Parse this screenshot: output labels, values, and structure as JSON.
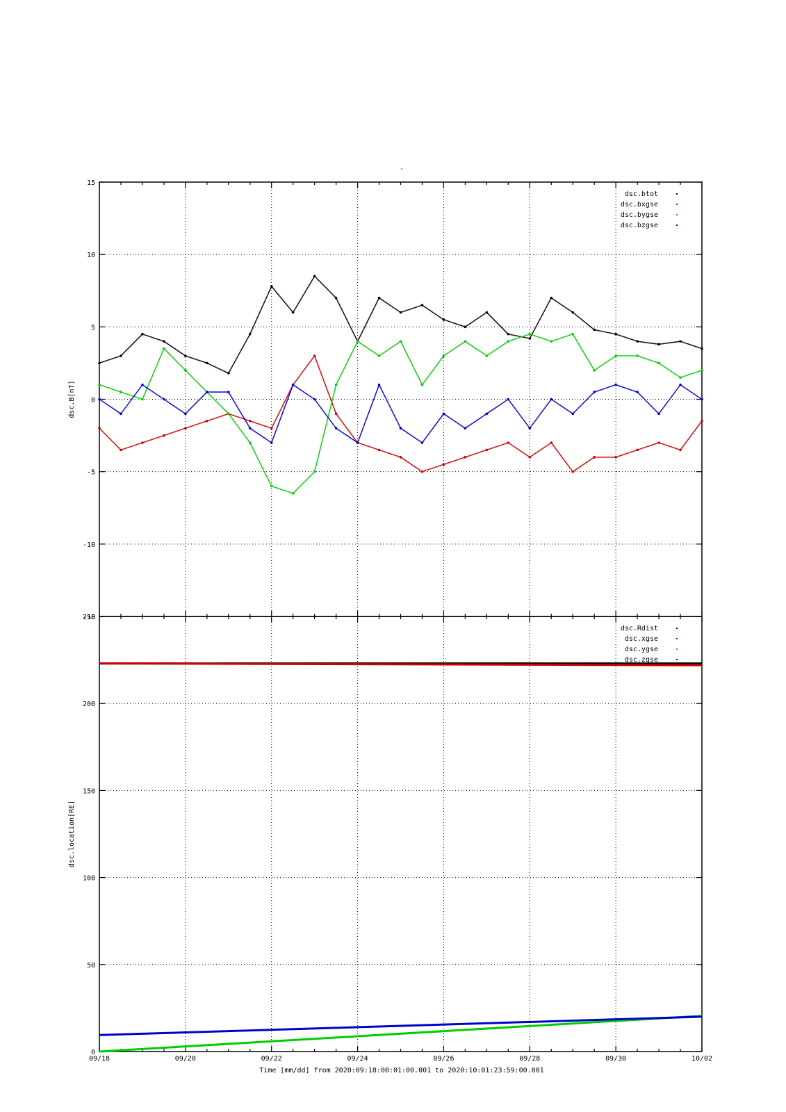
{
  "title": "-",
  "xlabel": "Time [mm/dd]  from 2020:09:18:00:01:00.001  to  2020:10:01:23:59:00.001",
  "x_ticks": [
    "09/18",
    "09/20",
    "09/22",
    "09/24",
    "09/26",
    "09/28",
    "09/30",
    "10/02"
  ],
  "chart_data": [
    {
      "type": "scatter",
      "ylabel": "dsc.B[nT]",
      "ylim": [
        -15,
        15
      ],
      "y_ticks": [
        15,
        10,
        5,
        0,
        -5,
        -10,
        -15
      ],
      "xlim": [
        "09/18",
        "10/02"
      ],
      "grid": true,
      "legend_position": "top-right",
      "x_days": [
        0,
        0.5,
        1,
        1.5,
        2,
        2.5,
        3,
        3.5,
        4,
        4.5,
        5,
        5.5,
        6,
        6.5,
        7,
        7.5,
        8,
        8.5,
        9,
        9.5,
        10,
        10.5,
        11,
        11.5,
        12,
        12.5,
        13,
        13.5,
        14
      ],
      "series": [
        {
          "name": "dsc.btot",
          "color": "#000000",
          "values": [
            2.5,
            3.0,
            4.5,
            4.0,
            3.0,
            2.5,
            1.8,
            4.5,
            7.8,
            6.0,
            8.5,
            7.0,
            4.0,
            7.0,
            6.0,
            6.5,
            5.5,
            5.0,
            6.0,
            4.5,
            4.2,
            7.0,
            6.0,
            4.8,
            4.5,
            4.0,
            3.8,
            4.0,
            3.5
          ]
        },
        {
          "name": "dsc.bxgse",
          "color": "#cc0000",
          "values": [
            -2.0,
            -3.5,
            -3.0,
            -2.5,
            -2.0,
            -1.5,
            -1.0,
            -1.5,
            -2.0,
            1.0,
            3.0,
            -1.0,
            -3.0,
            -3.5,
            -4.0,
            -5.0,
            -4.5,
            -4.0,
            -3.5,
            -3.0,
            -4.0,
            -3.0,
            -5.0,
            -4.0,
            -4.0,
            -3.5,
            -3.0,
            -3.5,
            -1.5
          ]
        },
        {
          "name": "dsc.bygse",
          "color": "#00cc00",
          "values": [
            1.0,
            0.5,
            0.0,
            3.5,
            2.0,
            0.5,
            -1.0,
            -3.0,
            -6.0,
            -6.5,
            -5.0,
            1.0,
            4.0,
            3.0,
            4.0,
            1.0,
            3.0,
            4.0,
            3.0,
            4.0,
            4.5,
            4.0,
            4.5,
            2.0,
            3.0,
            3.0,
            2.5,
            1.5,
            2.0
          ]
        },
        {
          "name": "dsc.bzgse",
          "color": "#0000cc",
          "values": [
            0.0,
            -1.0,
            1.0,
            0.0,
            -1.0,
            0.5,
            0.5,
            -2.0,
            -3.0,
            1.0,
            0.0,
            -2.0,
            -3.0,
            1.0,
            -2.0,
            -3.0,
            -1.0,
            -2.0,
            -1.0,
            0.0,
            -2.0,
            0.0,
            -1.0,
            0.5,
            1.0,
            0.5,
            -1.0,
            1.0,
            0.0
          ]
        }
      ]
    },
    {
      "type": "scatter",
      "ylabel": "dsc.location[RE]",
      "ylim": [
        0,
        250
      ],
      "y_ticks": [
        250,
        200,
        150,
        100,
        50,
        0
      ],
      "xlim": [
        "09/18",
        "10/02"
      ],
      "grid": true,
      "legend_position": "top-right",
      "x_days": [
        0,
        14
      ],
      "series": [
        {
          "name": "dsc.Rdist",
          "color": "#000000",
          "values": [
            223,
            223
          ]
        },
        {
          "name": "dsc.xgse",
          "color": "#cc0000",
          "values": [
            223,
            222
          ]
        },
        {
          "name": "dsc.ygse",
          "color": "#00cc00",
          "values": [
            0,
            20.5
          ]
        },
        {
          "name": "dsc.zgse",
          "color": "#0000cc",
          "values": [
            9.5,
            20
          ]
        }
      ]
    }
  ]
}
